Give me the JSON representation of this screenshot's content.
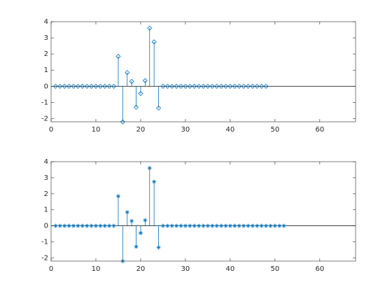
{
  "chart_data": [
    {
      "type": "stem",
      "marker": "diamond",
      "color": "#0072bd",
      "x": [
        1,
        2,
        3,
        4,
        5,
        6,
        7,
        8,
        9,
        10,
        11,
        12,
        13,
        14,
        15,
        16,
        17,
        18,
        19,
        20,
        21,
        22,
        23,
        24,
        25,
        26,
        27,
        28,
        29,
        30,
        31,
        32,
        33,
        34,
        35,
        36,
        37,
        38,
        39,
        40,
        41,
        42,
        43,
        44,
        45,
        46,
        47,
        48
      ],
      "values": [
        0,
        0,
        0,
        0,
        0,
        0,
        0,
        0,
        0,
        0,
        0,
        0,
        0,
        0,
        1.85,
        -2.2,
        0.85,
        0.3,
        -1.3,
        -0.45,
        0.35,
        3.6,
        2.75,
        -1.35,
        0,
        0,
        0,
        0,
        0,
        0,
        0,
        0,
        0,
        0,
        0,
        0,
        0,
        0,
        0,
        0,
        0,
        0,
        0,
        0,
        0,
        0,
        0,
        0
      ],
      "xlim": [
        0,
        68
      ],
      "ylim": [
        -2.2,
        4
      ],
      "xticks": [
        0,
        10,
        20,
        30,
        40,
        50,
        60
      ],
      "yticks": [
        -2,
        -1,
        0,
        1,
        2,
        3,
        4
      ]
    },
    {
      "type": "stem",
      "marker": "asterisk",
      "color": "#0072bd",
      "x": [
        1,
        2,
        3,
        4,
        5,
        6,
        7,
        8,
        9,
        10,
        11,
        12,
        13,
        14,
        15,
        16,
        17,
        18,
        19,
        20,
        21,
        22,
        23,
        24,
        25,
        26,
        27,
        28,
        29,
        30,
        31,
        32,
        33,
        34,
        35,
        36,
        37,
        38,
        39,
        40,
        41,
        42,
        43,
        44,
        45,
        46,
        47,
        48,
        49,
        50,
        51,
        52
      ],
      "values": [
        0,
        0,
        0,
        0,
        0,
        0,
        0,
        0,
        0,
        0,
        0,
        0,
        0,
        0,
        1.85,
        -2.2,
        0.85,
        0.3,
        -1.3,
        -0.45,
        0.35,
        3.6,
        2.75,
        -1.35,
        0,
        0,
        0,
        0,
        0,
        0,
        0,
        0,
        0,
        0,
        0,
        0,
        0,
        0,
        0,
        0,
        0,
        0,
        0,
        0,
        0,
        0,
        0,
        0,
        0,
        0,
        0,
        0
      ],
      "xlim": [
        0,
        68
      ],
      "ylim": [
        -2.2,
        4
      ],
      "xticks": [
        0,
        10,
        20,
        30,
        40,
        50,
        60
      ],
      "yticks": [
        -2,
        -1,
        0,
        1,
        2,
        3,
        4
      ]
    }
  ]
}
